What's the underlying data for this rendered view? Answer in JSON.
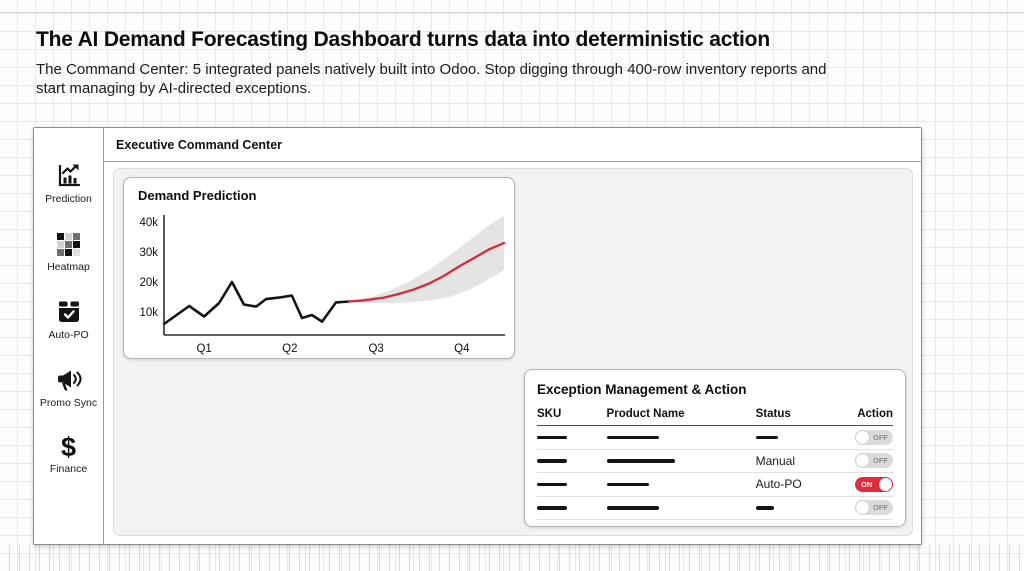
{
  "page": {
    "title": "The AI Demand Forecasting Dashboard turns data into deterministic action",
    "subtitle": "The Command Center: 5 integrated panels natively built into Odoo. Stop digging through 400-row inventory reports and start managing by AI-directed exceptions."
  },
  "window": {
    "header": "Executive Command Center"
  },
  "sidebar": {
    "items": [
      {
        "label": "Prediction",
        "icon": "trend-chart-icon"
      },
      {
        "label": "Heatmap",
        "icon": "heatmap-grid-icon"
      },
      {
        "label": "Auto-PO",
        "icon": "box-check-icon"
      },
      {
        "label": "Promo Sync",
        "icon": "megaphone-icon"
      },
      {
        "label": "Finance",
        "icon": "dollar-icon"
      }
    ]
  },
  "chart_data": {
    "type": "line",
    "title": "Demand Prediction",
    "xlabel": "",
    "ylabel": "",
    "ylim_thousands": [
      0,
      45
    ],
    "grid": false,
    "y_ticks": [
      {
        "label": "40k",
        "value": 40
      },
      {
        "label": "30k",
        "value": 30
      },
      {
        "label": "20k",
        "value": 20
      },
      {
        "label": "10k",
        "value": 10
      }
    ],
    "x_ticks": [
      {
        "label": "Q1",
        "pct": 11.8
      },
      {
        "label": "Q2",
        "pct": 37.0
      },
      {
        "label": "Q3",
        "pct": 62.4
      },
      {
        "label": "Q4",
        "pct": 87.6
      }
    ],
    "series": [
      {
        "name": "historical",
        "color": "#141414",
        "x_pct": [
          0,
          7.4,
          11.8,
          16.2,
          20,
          23.5,
          27.1,
          30,
          33.8,
          37.6,
          40.6,
          43.5,
          46.5,
          50.6,
          54.4
        ],
        "values_thousands": [
          6,
          12,
          8.5,
          13,
          20,
          12.5,
          11.8,
          14.3,
          14.8,
          15.5,
          8,
          9,
          6.8,
          13.2,
          13.5
        ]
      },
      {
        "name": "forecast",
        "color": "#d62b3a",
        "x_pct": [
          54.4,
          59,
          64.7,
          69,
          73.5,
          78,
          82.3,
          86.5,
          91.2,
          95.5,
          100
        ],
        "values_thousands": [
          13.5,
          13.9,
          14.8,
          16,
          17.5,
          19.5,
          22,
          25,
          28,
          30.8,
          33
        ]
      }
    ],
    "confidence_band": {
      "color": "#e4e4e2",
      "x_pct": [
        54.4,
        60,
        66,
        72,
        78,
        84,
        90,
        95,
        100
      ],
      "upper_thousands": [
        13.7,
        14.8,
        17,
        20,
        24,
        29,
        34,
        38.5,
        42
      ],
      "lower_thousands": [
        13.2,
        13,
        13,
        13.2,
        13.8,
        15,
        17.5,
        20.5,
        24
      ]
    }
  },
  "exception_panel": {
    "title": "Exception Management & Action",
    "columns": [
      "SKU",
      "Product Name",
      "Status",
      "Action"
    ],
    "rows": [
      {
        "sku": "",
        "product": "",
        "status": "",
        "action": "OFF"
      },
      {
        "sku": "",
        "product": "",
        "status": "Manual",
        "action": "OFF"
      },
      {
        "sku": "",
        "product": "",
        "status": "Auto-PO",
        "action": "ON"
      },
      {
        "sku": "",
        "product": "",
        "status": "",
        "action": "OFF"
      }
    ]
  },
  "colors": {
    "accent_red": "#d62b3a",
    "toggle_on": "#e12b3c",
    "toggle_off": "#dbdbdb",
    "band_gray": "#e4e4e2",
    "line_black": "#141414"
  }
}
